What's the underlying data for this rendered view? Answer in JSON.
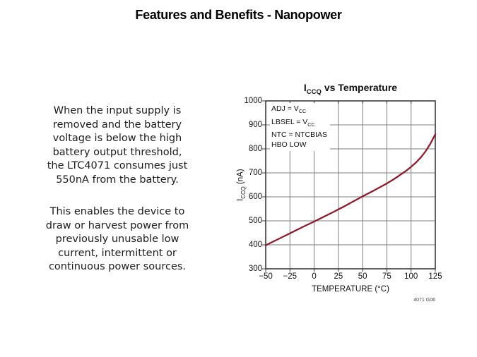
{
  "slide": {
    "title": "Features and Benefits - Nanopower",
    "paragraphs": [
      [
        "When the input supply is",
        "removed and the battery",
        "voltage is below the high",
        "battery output threshold,",
        "the LTC4071 consumes just",
        "550nA from the battery."
      ],
      [
        "This enables the device to",
        "draw or harvest power from",
        "previously unusable low",
        "current, intermittent or",
        "continuous power sources."
      ]
    ]
  },
  "chart_data": {
    "type": "line",
    "title": "I_{CCQ} vs Temperature",
    "xlabel": "TEMPERATURE (°C)",
    "ylabel": "I_{CCQ} (nA)",
    "xlim": [
      -50,
      125
    ],
    "ylim": [
      300,
      1000
    ],
    "x_ticks": [
      -50,
      -25,
      0,
      25,
      50,
      75,
      100,
      125
    ],
    "x_tick_labels": [
      "−50",
      "−25",
      "0",
      "25",
      "50",
      "75",
      "100",
      "125"
    ],
    "y_ticks": [
      300,
      400,
      500,
      600,
      700,
      800,
      900,
      1000
    ],
    "y_tick_labels": [
      "300",
      "400",
      "500",
      "600",
      "700",
      "800",
      "900",
      "1000"
    ],
    "grid": true,
    "legend_position": "top-left-inside",
    "annotations": [
      "ADJ = V_{CC}",
      "LBSEL = V_{CC}",
      "NTC = NTCBIAS",
      "HBO LOW"
    ],
    "note": "4071 G06",
    "colors": {
      "line": "#8b1f2e",
      "grid": "#7f7f7f",
      "frame": "#3a3a3a"
    },
    "series": [
      {
        "name": "ICCQ (nA)",
        "points": [
          [
            -50,
            398
          ],
          [
            -40,
            418
          ],
          [
            -30,
            438
          ],
          [
            -20,
            458
          ],
          [
            -10,
            478
          ],
          [
            0,
            497
          ],
          [
            10,
            517
          ],
          [
            20,
            537
          ],
          [
            25,
            548
          ],
          [
            30,
            558
          ],
          [
            40,
            580
          ],
          [
            50,
            602
          ],
          [
            60,
            623
          ],
          [
            70,
            645
          ],
          [
            75,
            656
          ],
          [
            80,
            668
          ],
          [
            85,
            681
          ],
          [
            90,
            695
          ],
          [
            95,
            709
          ],
          [
            100,
            725
          ],
          [
            105,
            743
          ],
          [
            110,
            764
          ],
          [
            115,
            790
          ],
          [
            120,
            822
          ],
          [
            125,
            861
          ]
        ]
      }
    ]
  }
}
